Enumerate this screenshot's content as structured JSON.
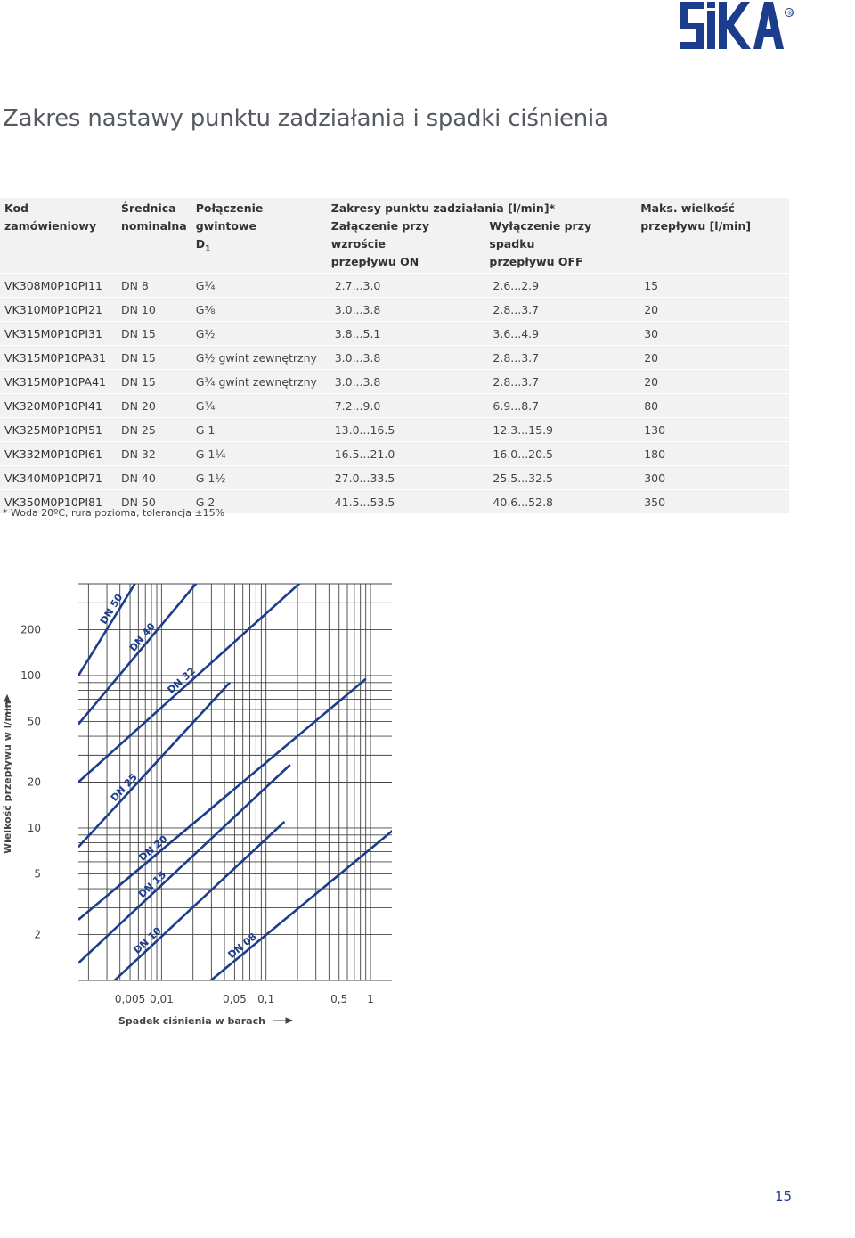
{
  "logo": {
    "text": "SIKA",
    "registered": "®",
    "color": "#1c3c8c"
  },
  "title": "Zakres nastawy punktu zadziałania i spadki ciśnienia",
  "table": {
    "headers": {
      "code_1": "Kod",
      "code_2": "zamówieniowy",
      "dn_1": "Średnica",
      "dn_2": "nominalna",
      "thread_1": "Połączenie gwintowe",
      "thread_2": "D",
      "thread_sub": "1",
      "range": "Zakresy punktu zadziałania [l/min]*",
      "on_1": "Załączenie przy wzroście",
      "on_2": "przepływu ON",
      "off_1": "Wyłączenie przy spadku",
      "off_2": "przepływu OFF",
      "max_1": "Maks. wielkość",
      "max_2": "przepływu [l/min]"
    },
    "rows": [
      {
        "code": "VK308M0P10PI11",
        "dn": "DN 8",
        "thread": "G¼",
        "on": "2.7...3.0",
        "off": "2.6...2.9",
        "max": "15"
      },
      {
        "code": "VK310M0P10PI21",
        "dn": "DN 10",
        "thread": "G⅜",
        "on": "3.0...3.8",
        "off": "2.8...3.7",
        "max": "20"
      },
      {
        "code": "VK315M0P10PI31",
        "dn": "DN 15",
        "thread": "G½",
        "on": "3.8...5.1",
        "off": "3.6...4.9",
        "max": "30"
      },
      {
        "code": "VK315M0P10PA31",
        "dn": "DN 15",
        "thread": "G½ gwint zewnętrzny",
        "on": "3.0...3.8",
        "off": "2.8...3.7",
        "max": "20"
      },
      {
        "code": "VK315M0P10PA41",
        "dn": "DN 15",
        "thread": "G¾ gwint zewnętrzny",
        "on": "3.0...3.8",
        "off": "2.8...3.7",
        "max": "20"
      },
      {
        "code": "VK320M0P10PI41",
        "dn": "DN 20",
        "thread": "G¾",
        "on": "7.2...9.0",
        "off": "6.9...8.7",
        "max": "80"
      },
      {
        "code": "VK325M0P10PI51",
        "dn": "DN 25",
        "thread": "G 1",
        "on": "13.0...16.5",
        "off": "12.3...15.9",
        "max": "130"
      },
      {
        "code": "VK332M0P10PI61",
        "dn": "DN 32",
        "thread": "G 1¼",
        "on": "16.5...21.0",
        "off": "16.0...20.5",
        "max": "180"
      },
      {
        "code": "VK340M0P10PI71",
        "dn": "DN 40",
        "thread": "G 1½",
        "on": "27.0...33.5",
        "off": "25.5...32.5",
        "max": "300"
      },
      {
        "code": "VK350M0P10PI81",
        "dn": "DN 50",
        "thread": "G 2",
        "on": "41.5...53.5",
        "off": "40.6...52.8",
        "max": "350"
      }
    ]
  },
  "footnote": "*  Woda 20ºC, rura pozioma, tolerancja ±15%",
  "chart_data": {
    "type": "line",
    "xscale": "log",
    "yscale": "log",
    "xlabel": "Spadek ciśnienia w barach",
    "ylabel": "Wielkość przepływu w l/min",
    "x_ticks": [
      "0,005",
      "0,01",
      "0,05",
      "0,1",
      "0,5",
      "1"
    ],
    "x_tick_values": [
      0.005,
      0.01,
      0.05,
      0.1,
      0.5,
      1
    ],
    "y_ticks": [
      "200",
      "100",
      "50",
      "20",
      "10",
      "5",
      "2"
    ],
    "y_tick_values": [
      200,
      100,
      50,
      20,
      10,
      5,
      2
    ],
    "grid": true,
    "series_color": "#1c3c8c",
    "series": [
      {
        "name": "DN 50",
        "x": [
          0.0016,
          0.008
        ],
        "y": [
          100,
          600
        ]
      },
      {
        "name": "DN 40",
        "x": [
          0.0016,
          0.035
        ],
        "y": [
          48,
          600
        ]
      },
      {
        "name": "DN 32",
        "x": [
          0.0016,
          0.4
        ],
        "y": [
          20,
          600
        ]
      },
      {
        "name": "DN 25",
        "x": [
          0.0016,
          0.045
        ],
        "y": [
          7.5,
          90
        ]
      },
      {
        "name": "DN 20",
        "x": [
          0.0016,
          0.9
        ],
        "y": [
          2.5,
          95
        ]
      },
      {
        "name": "DN 15",
        "x": [
          0.0016,
          0.17
        ],
        "y": [
          1.3,
          26
        ]
      },
      {
        "name": "DN 10",
        "x": [
          0.0016,
          0.15
        ],
        "y": [
          0.6,
          11
        ]
      },
      {
        "name": "DN 08",
        "x": [
          0.012,
          4.0
        ],
        "y": [
          0.6,
          16
        ]
      }
    ]
  },
  "page_number": "15"
}
